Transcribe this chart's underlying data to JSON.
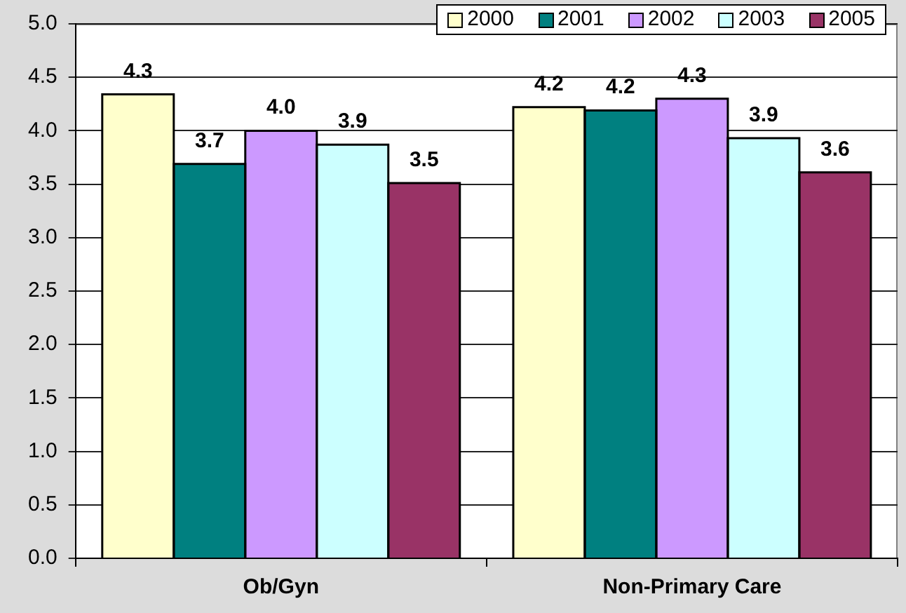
{
  "chart_data": {
    "type": "bar",
    "categories": [
      "Ob/Gyn",
      "Non-Primary Care"
    ],
    "series": [
      {
        "name": "2000",
        "color": "#ffffcc",
        "values": [
          4.34,
          4.22
        ],
        "value_labels": [
          "4.3",
          "4.2"
        ]
      },
      {
        "name": "2001",
        "color": "#008080",
        "values": [
          3.69,
          4.19
        ],
        "value_labels": [
          "3.7",
          "4.2"
        ]
      },
      {
        "name": "2002",
        "color": "#cc99ff",
        "values": [
          4.0,
          4.3
        ],
        "value_labels": [
          "4.0",
          "4.3"
        ]
      },
      {
        "name": "2003",
        "color": "#ccffff",
        "values": [
          3.87,
          3.93
        ],
        "value_labels": [
          "3.9",
          "3.9"
        ]
      },
      {
        "name": "2005",
        "color": "#993366",
        "values": [
          3.51,
          3.61
        ],
        "value_labels": [
          "3.5",
          "3.6"
        ]
      }
    ],
    "ylim": [
      0,
      5
    ],
    "yticks": [
      {
        "value": 0,
        "label": "0.0"
      },
      {
        "value": 0.5,
        "label": "0.5"
      },
      {
        "value": 1,
        "label": "1.0"
      },
      {
        "value": 1.5,
        "label": "1.5"
      },
      {
        "value": 2,
        "label": "2.0"
      },
      {
        "value": 2.5,
        "label": "2.5"
      },
      {
        "value": 3,
        "label": "3.0"
      },
      {
        "value": 3.5,
        "label": "3.5"
      },
      {
        "value": 4,
        "label": "4.0"
      },
      {
        "value": 4.5,
        "label": "4.5"
      },
      {
        "value": 5,
        "label": "5.0"
      }
    ],
    "grid": "y",
    "legend": "top right"
  }
}
